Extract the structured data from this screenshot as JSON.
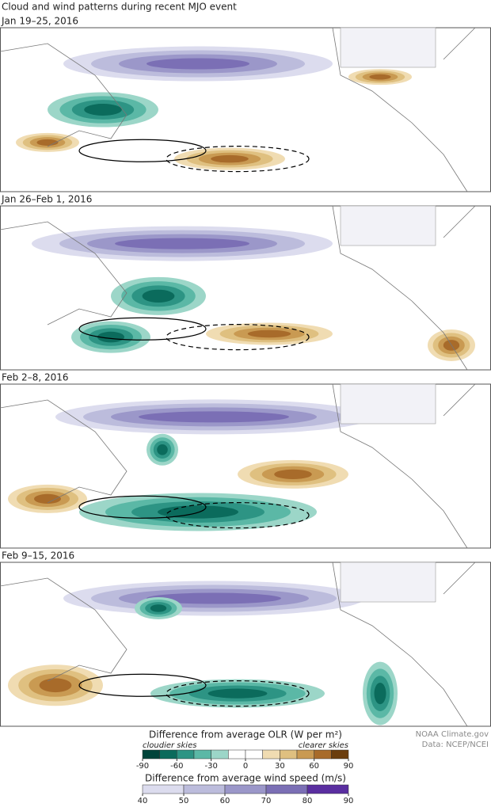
{
  "title": "Cloud and wind patterns during recent MJO event",
  "panels": [
    {
      "label": "Jan 19–25, 2016"
    },
    {
      "label": "Jan 26–Feb 1, 2016"
    },
    {
      "label": "Feb 2–8, 2016"
    },
    {
      "label": "Feb 9–15, 2016"
    }
  ],
  "legend": {
    "olr": {
      "title": "Difference from average OLR (W per m²)",
      "left_note": "cloudier skies",
      "right_note": "clearer skies",
      "lim": [
        -90,
        90
      ],
      "ticks": [
        -90,
        -60,
        -30,
        0,
        30,
        60,
        90
      ],
      "colors": [
        "#00443a",
        "#0b6b5c",
        "#2d9484",
        "#5bb8a6",
        "#9cd6c8",
        "#ffffff",
        "#ffffff",
        "#f0dcb2",
        "#dfc080",
        "#c99a52",
        "#a86b2a",
        "#6b3e0e"
      ]
    },
    "wind": {
      "title": "Difference from average wind speed (m/s)",
      "lim": [
        40,
        90
      ],
      "ticks": [
        40,
        50,
        60,
        70,
        80,
        90
      ],
      "colors": [
        "#dcdcee",
        "#bcbcdc",
        "#9b97c9",
        "#7b6fb5",
        "#5a2ea0"
      ]
    }
  },
  "credits": [
    "NOAA Climate.gov",
    "Data: NCEP/NCEI"
  ]
}
